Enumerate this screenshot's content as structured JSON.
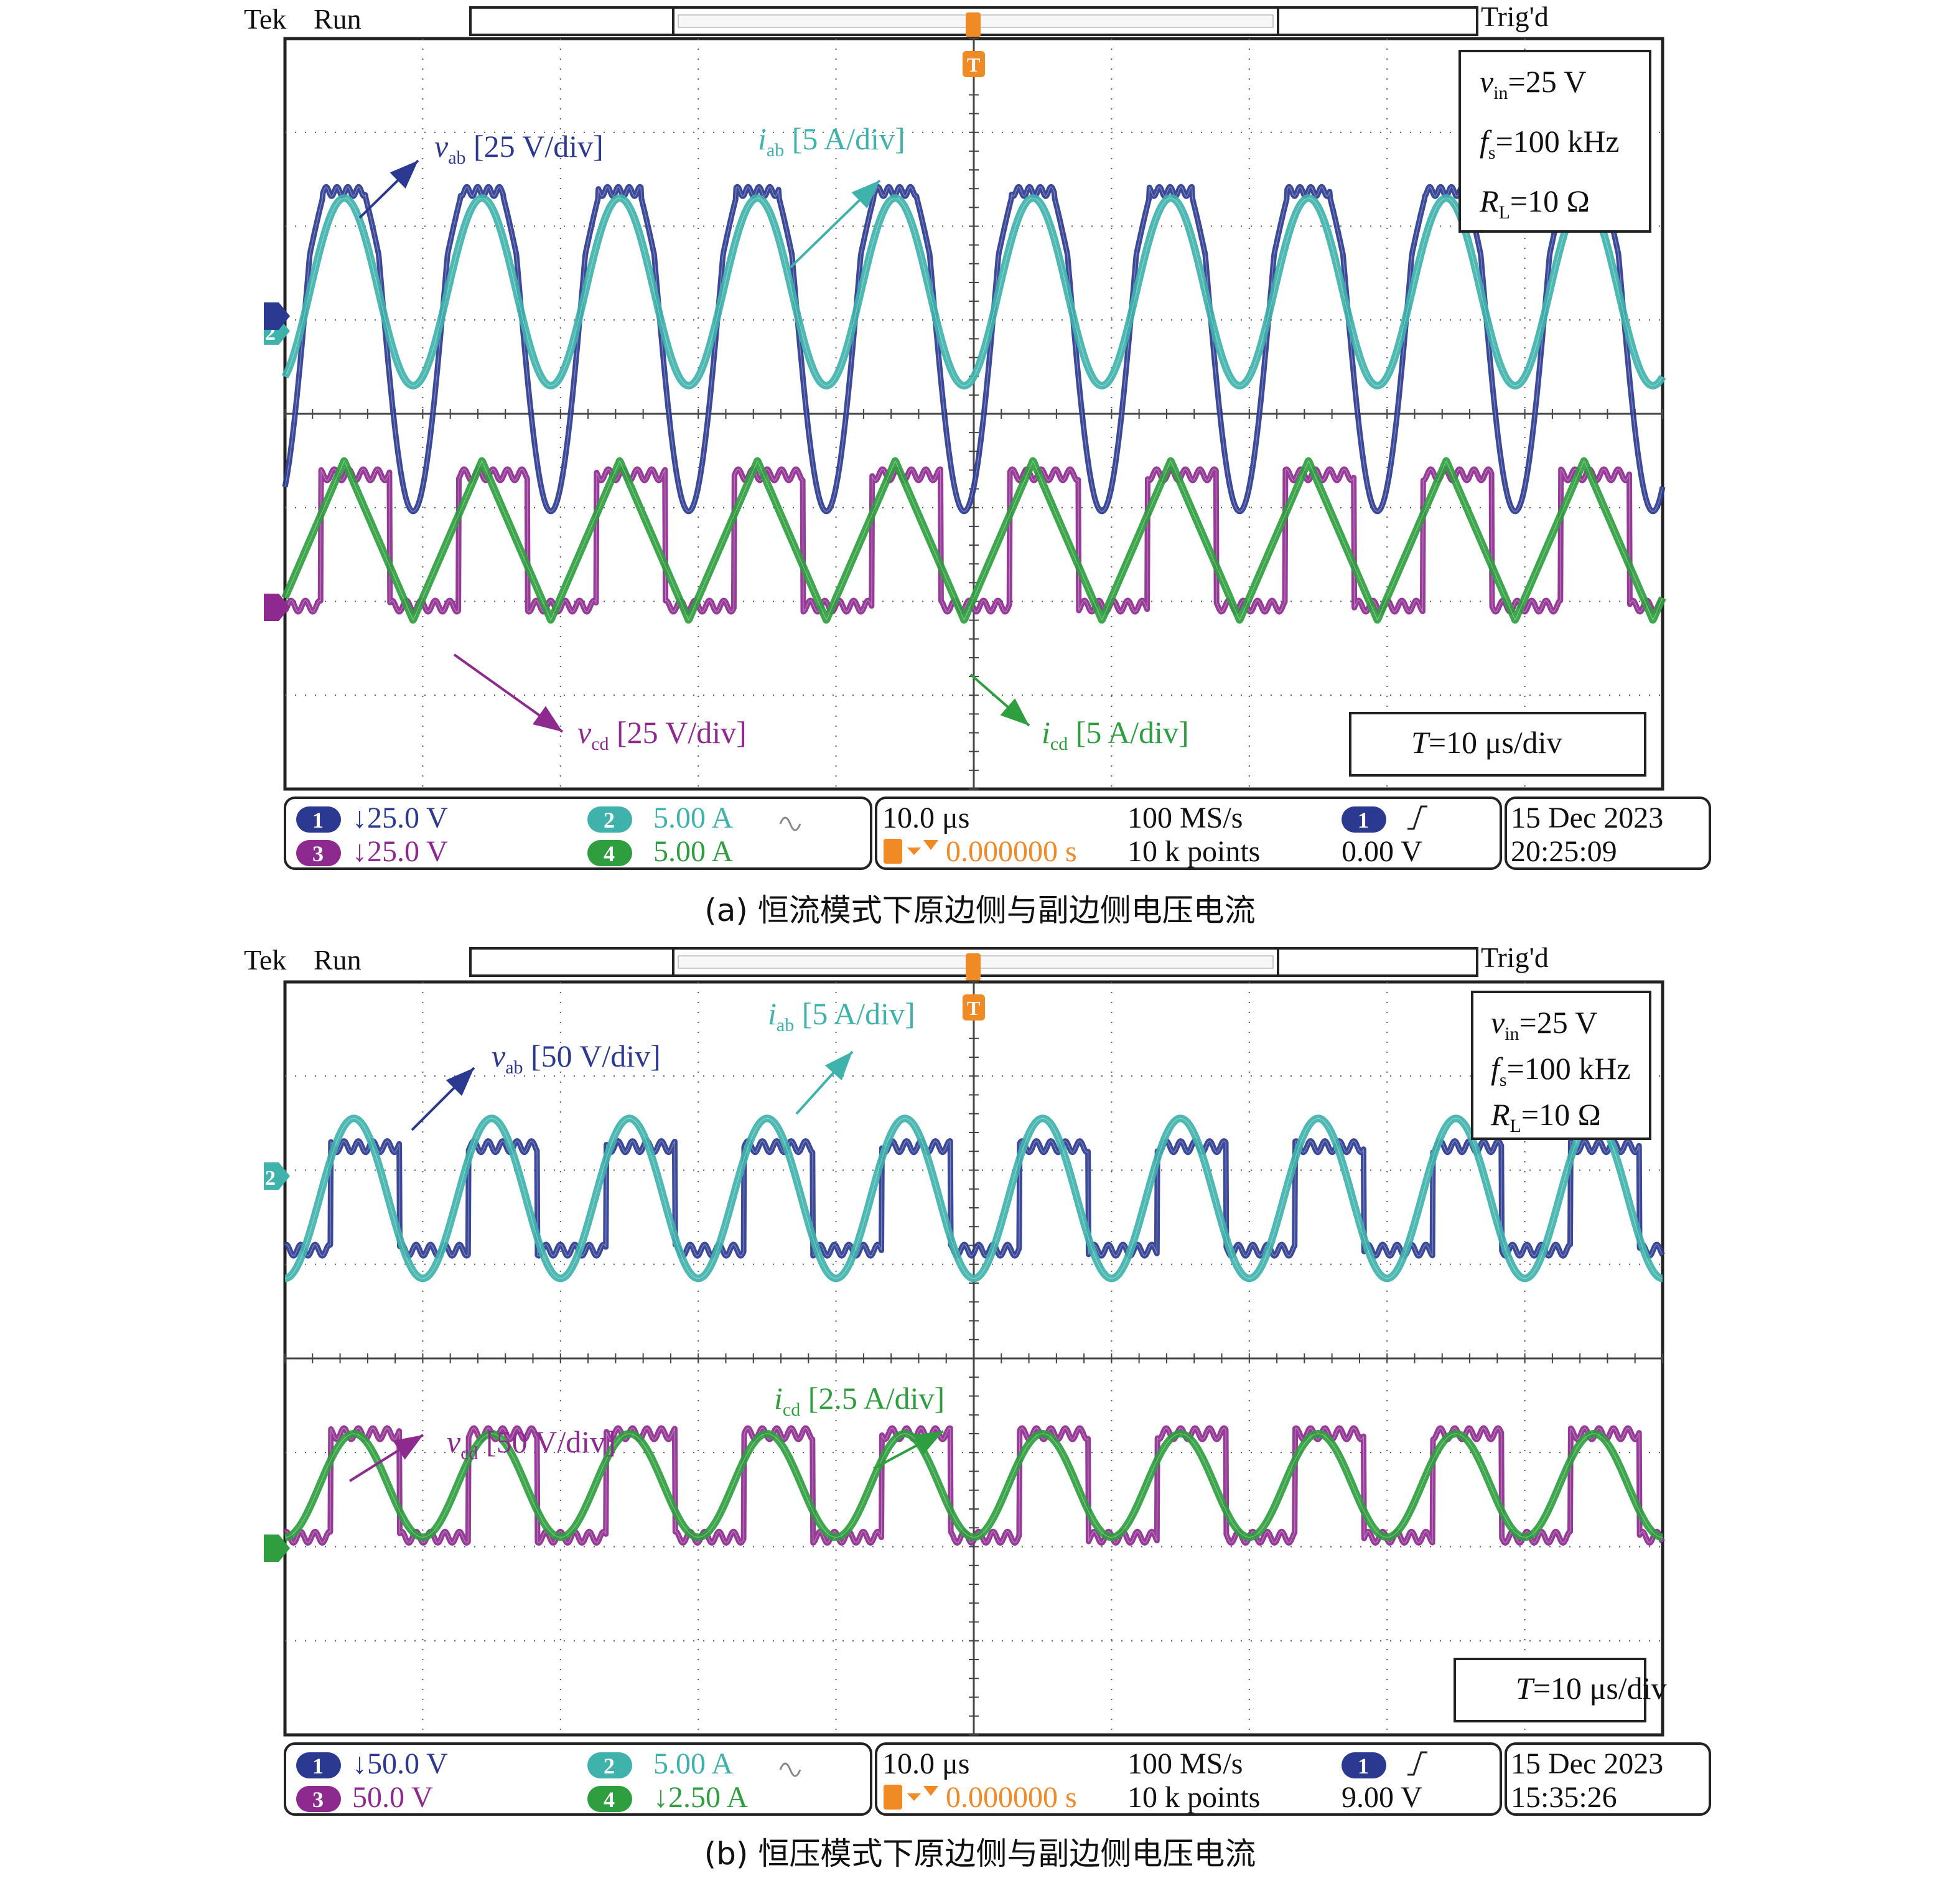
{
  "colors": {
    "ch1": "#2b3990",
    "ch2": "#3fb2ab",
    "ch3": "#8e2a8f",
    "ch4": "#2e9e3e",
    "trigger": "#f08a24",
    "grid": "#5a5a5a",
    "frame": "#222222"
  },
  "scope_common": {
    "brand": "Tek",
    "state": "Run",
    "trig_status": "Trig'd",
    "trigger_marker": "T",
    "timebase": "10.0 μs",
    "sample_rate": "100 MS/s",
    "record_length": "10 k points",
    "trigger_position": "0.000000 s",
    "trigger_channel": "1",
    "trigger_slope_icon": "rising-edge-icon"
  },
  "chart_data": [
    {
      "type": "line",
      "caption": "(a) 恒流模式下原边侧与副边侧电压电流",
      "x_unit": "μs",
      "x_range": [
        -50,
        50
      ],
      "y_unit": "div",
      "y_range": [
        -4,
        4
      ],
      "grid": true,
      "params": [
        "v_in=25 V",
        "f_s=100 kHz",
        "R_L=10 Ω"
      ],
      "param_lines": [
        {
          "sym": "v",
          "sub": "in",
          "rest": "=25 V"
        },
        {
          "sym": "f",
          "sub": "s",
          "rest": "=100 kHz"
        },
        {
          "sym": "R",
          "sub": "L",
          "rest": "=10 Ω"
        }
      ],
      "timescale_label": {
        "sym": "T",
        "rest": "=10 μs/div"
      },
      "frequency_kHz": 100,
      "series": [
        {
          "name": "v_ab",
          "label": {
            "sym": "v",
            "sub": "ab",
            "scale": "[25 V/div]"
          },
          "shape": "square-ringing",
          "color_key": "ch1",
          "offset_div": 1.7,
          "amp_div": 1.08,
          "low_div": -0.95
        },
        {
          "name": "i_ab",
          "label": {
            "sym": "i",
            "sub": "ab",
            "scale": "[5 A/div]"
          },
          "shape": "sine",
          "color_key": "ch2",
          "offset_div": 1.3,
          "amp_div": 1.0
        },
        {
          "name": "v_cd",
          "label": {
            "sym": "v",
            "sub": "cd",
            "scale": "[25 V/div]"
          },
          "shape": "square",
          "color_key": "ch3",
          "offset_div": -1.35,
          "amp_div": 0.7
        },
        {
          "name": "i_cd",
          "label": {
            "sym": "i",
            "sub": "cd",
            "scale": "[5 A/div]"
          },
          "shape": "triangle",
          "color_key": "ch4",
          "offset_div": -1.35,
          "amp_div": 0.85
        }
      ],
      "status": {
        "ch1_label": "1",
        "ch1_value": "↓25.0 V",
        "ch2_label": "2",
        "ch2_value": "5.00 A",
        "ch3_label": "3",
        "ch3_value": "↓25.0 V",
        "ch4_label": "4",
        "ch4_value": "5.00 A",
        "trigger_level": "0.00 V",
        "date": "15 Dec  2023",
        "time": "20:25:09"
      }
    },
    {
      "type": "line",
      "caption": "(b) 恒压模式下原边侧与副边侧电压电流",
      "x_unit": "μs",
      "x_range": [
        -50,
        50
      ],
      "y_unit": "div",
      "y_range": [
        -4,
        4
      ],
      "grid": true,
      "params": [
        "v_in=25 V",
        "f_s=100 kHz",
        "R_L=10 Ω"
      ],
      "param_lines": [
        {
          "sym": "v",
          "sub": "in",
          "rest": "=25 V"
        },
        {
          "sym": "f",
          "sub": "s",
          "rest": "=100 kHz"
        },
        {
          "sym": "R",
          "sub": "L",
          "rest": "=10 Ω"
        }
      ],
      "timescale_label": {
        "sym": "T",
        "rest": "=10 μs/div"
      },
      "frequency_kHz": 100,
      "series": [
        {
          "name": "v_ab",
          "label": {
            "sym": "v",
            "sub": "ab",
            "scale": "[50 V/div]"
          },
          "shape": "square",
          "color_key": "ch1",
          "offset_div": 1.7,
          "amp_div": 0.55
        },
        {
          "name": "i_ab",
          "label": {
            "sym": "i",
            "sub": "ab",
            "scale": "[5 A/div]"
          },
          "shape": "sine",
          "color_key": "ch2",
          "offset_div": 1.7,
          "amp_div": 0.85
        },
        {
          "name": "v_cd",
          "label": {
            "sym": "v",
            "sub": "cd",
            "scale": "[50 V/div]"
          },
          "shape": "square",
          "color_key": "ch3",
          "offset_div": -1.35,
          "amp_div": 0.55
        },
        {
          "name": "i_cd",
          "label": {
            "sym": "i",
            "sub": "cd",
            "scale": "[2.5 A/div]"
          },
          "shape": "sine",
          "color_key": "ch4",
          "offset_div": -1.35,
          "amp_div": 0.55
        }
      ],
      "status": {
        "ch1_label": "1",
        "ch1_value": "↓50.0 V",
        "ch2_label": "2",
        "ch2_value": "5.00 A",
        "ch3_label": "3",
        "ch3_value": "50.0 V",
        "ch4_label": "4",
        "ch4_value": "↓2.50 A",
        "trigger_level": "9.00 V",
        "date": "15 Dec  2023",
        "time": "15:35:26"
      }
    }
  ]
}
